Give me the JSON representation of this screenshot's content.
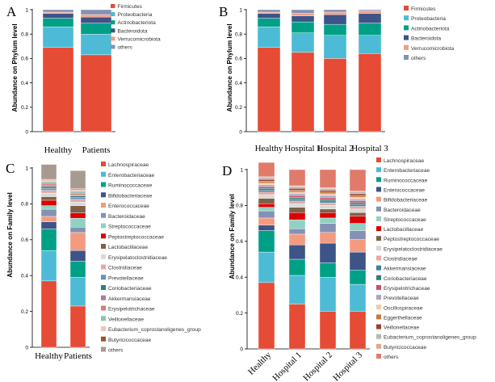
{
  "chart_data": [
    {
      "panel": "A",
      "type": "bar",
      "stacked": true,
      "ylabel": "Abundance on Phylum level",
      "ylim": [
        0,
        1
      ],
      "yticks": [
        "0",
        "0.2",
        "0.4",
        "0.6",
        "0.8",
        "1"
      ],
      "categories": [
        "Healthy",
        "Patients"
      ],
      "series": [
        {
          "name": "Firmicutes",
          "color": "#E64B35",
          "values": [
            0.69,
            0.63
          ]
        },
        {
          "name": "Proteobacteria",
          "color": "#4DBBD5",
          "values": [
            0.17,
            0.17
          ]
        },
        {
          "name": "Actinobacteriota",
          "color": "#00A087",
          "values": [
            0.07,
            0.09
          ]
        },
        {
          "name": "Bacteroidota",
          "color": "#3C5488",
          "values": [
            0.04,
            0.05
          ]
        },
        {
          "name": "Verrucomicrobiota",
          "color": "#F39B7F",
          "values": [
            0.01,
            0.02
          ]
        },
        {
          "name": "others",
          "color": "#8491B4",
          "values": [
            0.02,
            0.04
          ]
        }
      ]
    },
    {
      "panel": "B",
      "type": "bar",
      "stacked": true,
      "ylabel": "Abundance on Phylum level",
      "ylim": [
        0,
        1
      ],
      "yticks": [
        "0",
        "0.2",
        "0.4",
        "0.6",
        "0.8",
        "1"
      ],
      "categories": [
        "Healthy",
        "Hospital 1",
        "Hospital 2",
        "Hospital 3"
      ],
      "series": [
        {
          "name": "Firmicutes",
          "color": "#E64B35",
          "values": [
            0.69,
            0.65,
            0.6,
            0.64
          ]
        },
        {
          "name": "Proteobacteria",
          "color": "#4DBBD5",
          "values": [
            0.17,
            0.16,
            0.19,
            0.15
          ]
        },
        {
          "name": "Actinobacteriota",
          "color": "#00A087",
          "values": [
            0.07,
            0.09,
            0.09,
            0.1
          ]
        },
        {
          "name": "Bacteroidota",
          "color": "#3C5488",
          "values": [
            0.04,
            0.05,
            0.08,
            0.08
          ]
        },
        {
          "name": "Verrucomicrobiota",
          "color": "#F39B7F",
          "values": [
            0.01,
            0.02,
            0.02,
            0.02
          ]
        },
        {
          "name": "others",
          "color": "#8491B4",
          "values": [
            0.02,
            0.03,
            0.02,
            0.01
          ]
        }
      ]
    },
    {
      "panel": "C",
      "type": "bar",
      "stacked": true,
      "ylabel": "Abundance on Family level",
      "ylim": [
        0,
        1
      ],
      "yticks": [
        "0",
        "0.2",
        "0.4",
        "0.6",
        "0.8",
        "1"
      ],
      "categories": [
        "Healthy",
        "Patients"
      ],
      "series": [
        {
          "name": "Lachnospiraceae",
          "color": "#E64B35",
          "values": [
            0.37,
            0.23
          ]
        },
        {
          "name": "Enterobacteriaceae",
          "color": "#4DBBD5",
          "values": [
            0.17,
            0.16
          ]
        },
        {
          "name": "Ruminococcaceae",
          "color": "#00A087",
          "values": [
            0.12,
            0.09
          ]
        },
        {
          "name": "Bifidobacteriaceae",
          "color": "#3C5488",
          "values": [
            0.04,
            0.06
          ]
        },
        {
          "name": "Enterococcaceae",
          "color": "#F39B7F",
          "values": [
            0.03,
            0.1
          ]
        },
        {
          "name": "Bacteroidaceae",
          "color": "#8491B4",
          "values": [
            0.04,
            0.03
          ]
        },
        {
          "name": "Streptococcaceae",
          "color": "#91D1C2",
          "values": [
            0.02,
            0.05
          ]
        },
        {
          "name": "Peptostreptococcaceae",
          "color": "#DC0000",
          "values": [
            0.03,
            0.03
          ]
        },
        {
          "name": "Lactobacillaceae",
          "color": "#7E6148",
          "values": [
            0.02,
            0.04
          ]
        },
        {
          "name": "Erysipelatoclostridiaceae",
          "color": "#D9D9D9",
          "values": [
            0.02,
            0.02
          ]
        },
        {
          "name": "Clostridiaceae",
          "color": "#E7A9A2",
          "values": [
            0.015,
            0.015
          ]
        },
        {
          "name": "Prevotellaceae",
          "color": "#6C8EBF",
          "values": [
            0.01,
            0.01
          ]
        },
        {
          "name": "Coriobacteriaceae",
          "color": "#2E7F7A",
          "values": [
            0.01,
            0.01
          ]
        },
        {
          "name": "Akkermansiaceae",
          "color": "#B07A9E",
          "values": [
            0.01,
            0.005
          ]
        },
        {
          "name": "Erysipelotrichaceae",
          "color": "#D97C7A",
          "values": [
            0.01,
            0.01
          ]
        },
        {
          "name": "Veillonellaceae",
          "color": "#8FC3A8",
          "values": [
            0.01,
            0.01
          ]
        },
        {
          "name": "Eubacterium_coprostanoligenes_group",
          "color": "#E8C8B8",
          "values": [
            0.01,
            0.01
          ]
        },
        {
          "name": "Butyricicoccaceae",
          "color": "#A0522D",
          "values": [
            0.005,
            0.005
          ]
        },
        {
          "name": "others",
          "color": "#A89A90",
          "values": [
            0.08,
            0.1
          ]
        }
      ]
    },
    {
      "panel": "D",
      "type": "bar",
      "stacked": true,
      "ylabel": "Abundance on Family level",
      "ylim": [
        0,
        1
      ],
      "yticks": [
        "0",
        "0.2",
        "0.4",
        "0.6",
        "0.8",
        "1"
      ],
      "categories": [
        "Healthy",
        "Hospital 1",
        "Hospital 2",
        "Hospital 3"
      ],
      "series": [
        {
          "name": "Lachnospiraceae",
          "color": "#E64B35",
          "values": [
            0.37,
            0.25,
            0.21,
            0.21
          ]
        },
        {
          "name": "Enterobacteriaceae",
          "color": "#4DBBD5",
          "values": [
            0.17,
            0.16,
            0.19,
            0.15
          ]
        },
        {
          "name": "Ruminococcaceae",
          "color": "#00A087",
          "values": [
            0.12,
            0.09,
            0.08,
            0.08
          ]
        },
        {
          "name": "Enterococcaceae",
          "color": "#3C5488",
          "values": [
            0.03,
            0.08,
            0.11,
            0.1
          ]
        },
        {
          "name": "Bifidobacteriaceae",
          "color": "#F39B7F",
          "values": [
            0.04,
            0.06,
            0.06,
            0.07
          ]
        },
        {
          "name": "Bacteroidaceae",
          "color": "#8491B4",
          "values": [
            0.04,
            0.03,
            0.05,
            0.05
          ]
        },
        {
          "name": "Streptococcaceae",
          "color": "#91D1C2",
          "values": [
            0.02,
            0.05,
            0.03,
            0.04
          ]
        },
        {
          "name": "Lactobacillaceae",
          "color": "#DC0000",
          "values": [
            0.02,
            0.04,
            0.03,
            0.04
          ]
        },
        {
          "name": "Peptostreptococcaceae",
          "color": "#7E6148",
          "values": [
            0.03,
            0.03,
            0.02,
            0.02
          ]
        },
        {
          "name": "Erysipelatoclostridiaceae",
          "color": "#D9D9D9",
          "values": [
            0.02,
            0.02,
            0.02,
            0.02
          ]
        },
        {
          "name": "Clostridiaceae",
          "color": "#E7A9A2",
          "values": [
            0.015,
            0.015,
            0.015,
            0.015
          ]
        },
        {
          "name": "Akkermansiaceae",
          "color": "#3B7FA0",
          "values": [
            0.01,
            0.01,
            0.01,
            0.01
          ]
        },
        {
          "name": "Coriobacteriaceae",
          "color": "#2E7F7A",
          "values": [
            0.01,
            0.01,
            0.01,
            0.01
          ]
        },
        {
          "name": "Erysipelotrichaceae",
          "color": "#C8506A",
          "values": [
            0.01,
            0.01,
            0.01,
            0.01
          ]
        },
        {
          "name": "Prevotellaceae",
          "color": "#A9A3C8",
          "values": [
            0.01,
            0.01,
            0.01,
            0.01
          ]
        },
        {
          "name": "Oscillospiraceae",
          "color": "#F2C9A5",
          "values": [
            0.01,
            0.01,
            0.01,
            0.01
          ]
        },
        {
          "name": "Eggerthellaceae",
          "color": "#C77A3E",
          "values": [
            0.01,
            0.01,
            0.01,
            0.01
          ]
        },
        {
          "name": "Veillonellaceae",
          "color": "#9B3F2F",
          "values": [
            0.01,
            0.01,
            0.01,
            0.01
          ]
        },
        {
          "name": "Eubacterium_coprostanoligenes_group",
          "color": "#B7B7B7",
          "values": [
            0.01,
            0.01,
            0.01,
            0.01
          ]
        },
        {
          "name": "Butyricicoccaceae",
          "color": "#E6A68C",
          "values": [
            0.005,
            0.005,
            0.005,
            0.005
          ]
        },
        {
          "name": "others",
          "color": "#E07B6A",
          "values": [
            0.08,
            0.09,
            0.1,
            0.12
          ]
        }
      ]
    }
  ]
}
